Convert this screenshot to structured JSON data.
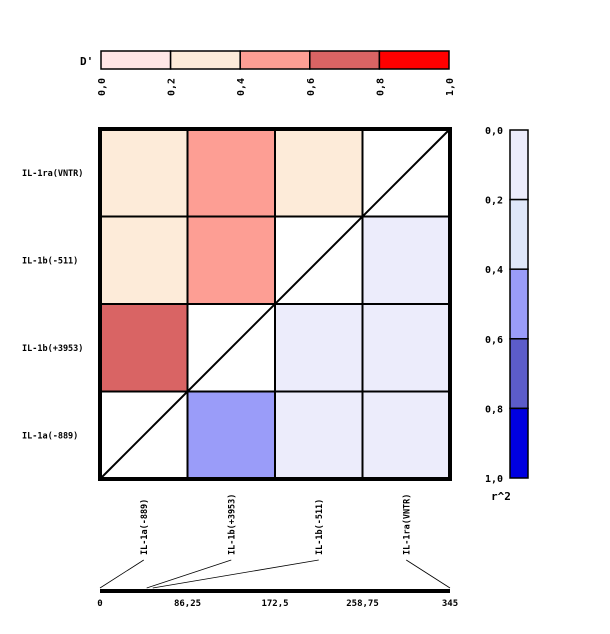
{
  "chart_data": {
    "type": "heatmap",
    "markers": [
      "IL-1a(-889)",
      "IL-1b(+3953)",
      "IL-1b(-511)",
      "IL-1ra(VNTR)"
    ],
    "row_labels_top_to_bottom": [
      "IL-1ra(VNTR)",
      "IL-1b(-511)",
      "IL-1b(+3953)",
      "IL-1a(-889)"
    ],
    "d_prime": {
      "legend_title": "D'",
      "tick_labels": [
        "0,0",
        "0,2",
        "0,4",
        "0,6",
        "0,8",
        "1,0"
      ],
      "colors": [
        "#ffe6e6",
        "#fdebd9",
        "#fd9e94",
        "#d96464",
        "#ff0000"
      ],
      "pairs": [
        {
          "a": "IL-1a(-889)",
          "b": "IL-1b(+3953)",
          "value": 0.7
        },
        {
          "a": "IL-1a(-889)",
          "b": "IL-1b(-511)",
          "value": 0.3
        },
        {
          "a": "IL-1a(-889)",
          "b": "IL-1ra(VNTR)",
          "value": 0.3
        },
        {
          "a": "IL-1b(+3953)",
          "b": "IL-1b(-511)",
          "value": 0.5
        },
        {
          "a": "IL-1b(+3953)",
          "b": "IL-1ra(VNTR)",
          "value": 0.5
        },
        {
          "a": "IL-1b(-511)",
          "b": "IL-1ra(VNTR)",
          "value": 0.3
        }
      ]
    },
    "r2": {
      "legend_title": "r^2",
      "tick_labels": [
        "0,0",
        "0,2",
        "0,4",
        "0,6",
        "0,8",
        "1,0"
      ],
      "colors": [
        "#ececfb",
        "#dfe7f9",
        "#9a9cf9",
        "#5c5cc9",
        "#0000e0"
      ],
      "pairs": [
        {
          "a": "IL-1a(-889)",
          "b": "IL-1b(+3953)",
          "value": 0.5
        },
        {
          "a": "IL-1a(-889)",
          "b": "IL-1b(-511)",
          "value": 0.1
        },
        {
          "a": "IL-1a(-889)",
          "b": "IL-1ra(VNTR)",
          "value": 0.1
        },
        {
          "a": "IL-1b(+3953)",
          "b": "IL-1b(-511)",
          "value": 0.1
        },
        {
          "a": "IL-1b(+3953)",
          "b": "IL-1ra(VNTR)",
          "value": 0.1
        },
        {
          "a": "IL-1b(-511)",
          "b": "IL-1ra(VNTR)",
          "value": 0.1
        }
      ]
    },
    "position_axis": {
      "ticks": [
        "0",
        "86,25",
        "172,5",
        "258,75",
        "345"
      ],
      "range": [
        0,
        345
      ],
      "marker_positions": [
        0,
        46,
        52,
        345
      ]
    }
  }
}
